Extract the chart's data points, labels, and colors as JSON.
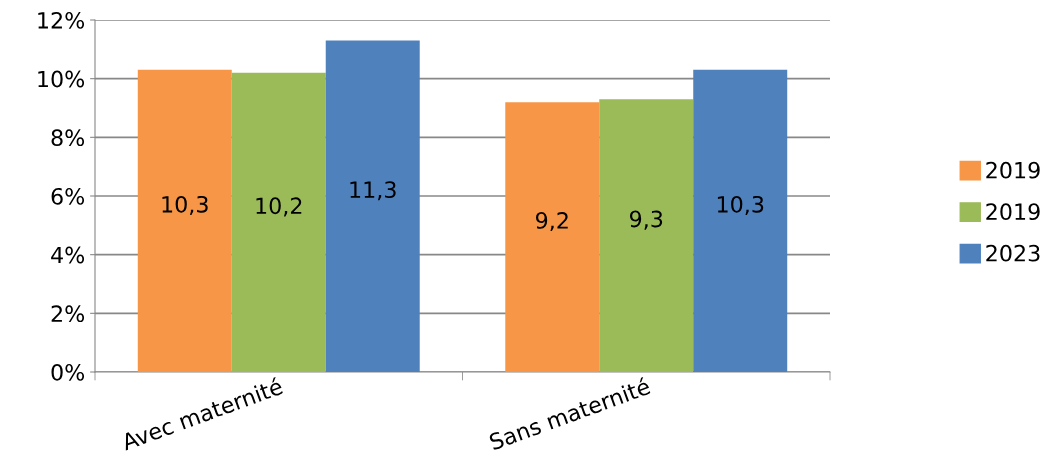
{
  "chart_data": {
    "type": "bar",
    "categories": [
      "Avec maternité",
      "Sans maternité"
    ],
    "series": [
      {
        "name": "2019",
        "color": "#f79646",
        "values": [
          10.3,
          9.2
        ],
        "value_labels": [
          "10,3",
          "9,2"
        ]
      },
      {
        "name": "2019",
        "color": "#9bbb59",
        "values": [
          10.2,
          9.3
        ],
        "value_labels": [
          "10,2",
          "9,3"
        ]
      },
      {
        "name": "2023",
        "color": "#4f81bd",
        "values": [
          11.3,
          10.3
        ],
        "value_labels": [
          "11,3",
          "10,3"
        ]
      }
    ],
    "ylim": [
      0,
      12
    ],
    "yticks": [
      {
        "value": 0,
        "label": "0%"
      },
      {
        "value": 2,
        "label": "2%"
      },
      {
        "value": 4,
        "label": "4%"
      },
      {
        "value": 6,
        "label": "6%"
      },
      {
        "value": 8,
        "label": "8%"
      },
      {
        "value": 10,
        "label": "10%"
      },
      {
        "value": 12,
        "label": "12%"
      }
    ],
    "grid": "y",
    "legend": "right"
  }
}
